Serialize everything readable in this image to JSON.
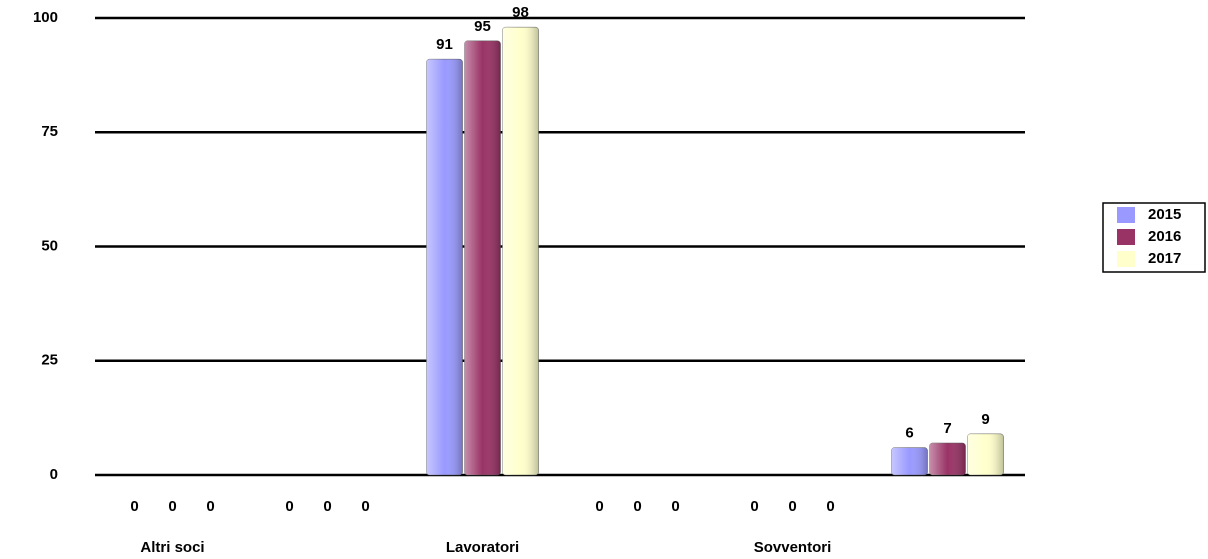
{
  "chart_data": {
    "type": "bar",
    "categories": [
      "Altri soci",
      null,
      "Lavoratori",
      null,
      "Sovventori",
      null
    ],
    "series": [
      {
        "name": "2015",
        "color": "#9999ff",
        "values": [
          0,
          0,
          91,
          0,
          0,
          6
        ]
      },
      {
        "name": "2016",
        "color": "#993366",
        "values": [
          0,
          0,
          95,
          0,
          0,
          7
        ]
      },
      {
        "name": "2017",
        "color": "#ffffcc",
        "values": [
          0,
          0,
          98,
          0,
          0,
          9
        ]
      }
    ],
    "ylim": [
      0,
      100
    ],
    "yticks": [
      0,
      25,
      50,
      75,
      100
    ],
    "grid": true,
    "legend": "right"
  }
}
